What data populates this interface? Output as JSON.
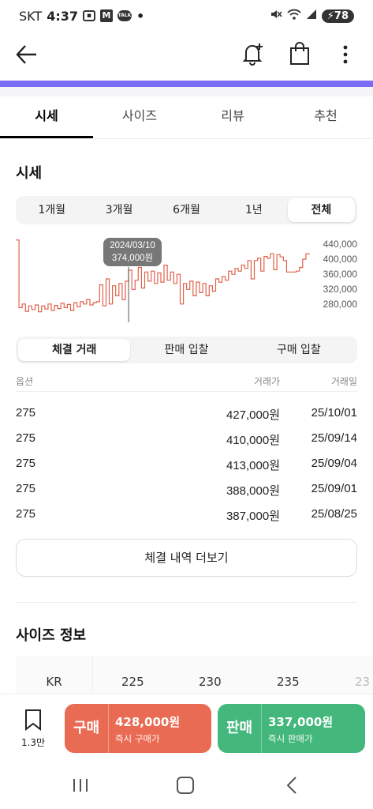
{
  "status_bar": {
    "carrier": "SKT",
    "time": "4:37",
    "notif_m": "M",
    "notif_talk": "TALK",
    "dot": "•",
    "battery": "78"
  },
  "app_bar": {
    "icons": [
      "back-arrow-icon",
      "bell-plus-icon",
      "shopping-bag-icon",
      "more-vertical-icon"
    ]
  },
  "colors": {
    "accent_purple": "#7b6cf6",
    "chart_line": "#e0614a",
    "buy": "#ea6b53",
    "sell": "#44b87c"
  },
  "tabs": [
    {
      "label": "시세",
      "active": true
    },
    {
      "label": "사이즈",
      "active": false
    },
    {
      "label": "리뷰",
      "active": false
    },
    {
      "label": "추천",
      "active": false
    }
  ],
  "price_section": {
    "title": "시세",
    "periods": [
      {
        "label": "1개월",
        "active": false
      },
      {
        "label": "3개월",
        "active": false
      },
      {
        "label": "6개월",
        "active": false
      },
      {
        "label": "1년",
        "active": false
      },
      {
        "label": "전체",
        "active": true
      }
    ],
    "tooltip": {
      "date": "2024/03/10",
      "price": "374,000원"
    }
  },
  "chart_data": {
    "type": "line",
    "title": "",
    "xlabel": "",
    "ylabel": "",
    "y_ticks": [
      "440,000",
      "400,000",
      "360,000",
      "320,000",
      "280,000"
    ],
    "ylim": [
      260000,
      450000
    ],
    "grid": false,
    "series": [
      {
        "values": [
          440000,
          292000,
          300000,
          284000,
          296000,
          288000,
          298000,
          283000,
          296000,
          289000,
          300000,
          286000,
          297000,
          290000,
          302000,
          292000,
          299000,
          286000,
          303000,
          294000,
          305000,
          300000,
          310000,
          298000,
          303000,
          305000,
          342000,
          296000,
          355000,
          300000,
          340000,
          318000,
          345000,
          310000,
          350000,
          374000,
          332000,
          352000,
          380000,
          335000,
          370000,
          350000,
          372000,
          345000,
          368000,
          348000,
          385000,
          352000,
          370000,
          345000,
          365000,
          300000,
          345000,
          332000,
          350000,
          318000,
          348000,
          325000,
          345000,
          318000,
          340000,
          328000,
          355000,
          348000,
          360000,
          352000,
          372000,
          365000,
          378000,
          372000,
          385000,
          378000,
          395000,
          355000,
          395000,
          400000,
          372000,
          404000,
          400000,
          410000,
          375000,
          408000,
          403000,
          395000,
          370000,
          370000,
          370000,
          372000,
          380000,
          398000,
          410000,
          408000
        ]
      }
    ]
  },
  "trade_tabs": [
    {
      "label": "체결 거래",
      "active": true
    },
    {
      "label": "판매 입찰",
      "active": false
    },
    {
      "label": "구매 입찰",
      "active": false
    }
  ],
  "table": {
    "headers": [
      "옵션",
      "거래가",
      "거래일"
    ],
    "rows": [
      [
        "275",
        "427,000원",
        "25/10/01"
      ],
      [
        "275",
        "410,000원",
        "25/09/14"
      ],
      [
        "275",
        "413,000원",
        "25/09/04"
      ],
      [
        "275",
        "388,000원",
        "25/09/01"
      ],
      [
        "275",
        "387,000원",
        "25/08/25"
      ]
    ]
  },
  "more_button": "체결 내역 더보기",
  "size_info": {
    "title": "사이즈 정보",
    "row_label": "KR",
    "sizes": [
      "225",
      "230",
      "235",
      "23"
    ]
  },
  "bottom_bar": {
    "bookmark_count": "1.3만",
    "buy": {
      "label": "구매",
      "price": "428,000원",
      "sub": "즉시 구매가"
    },
    "sell": {
      "label": "판매",
      "price": "337,000원",
      "sub": "즉시 판매가"
    }
  }
}
